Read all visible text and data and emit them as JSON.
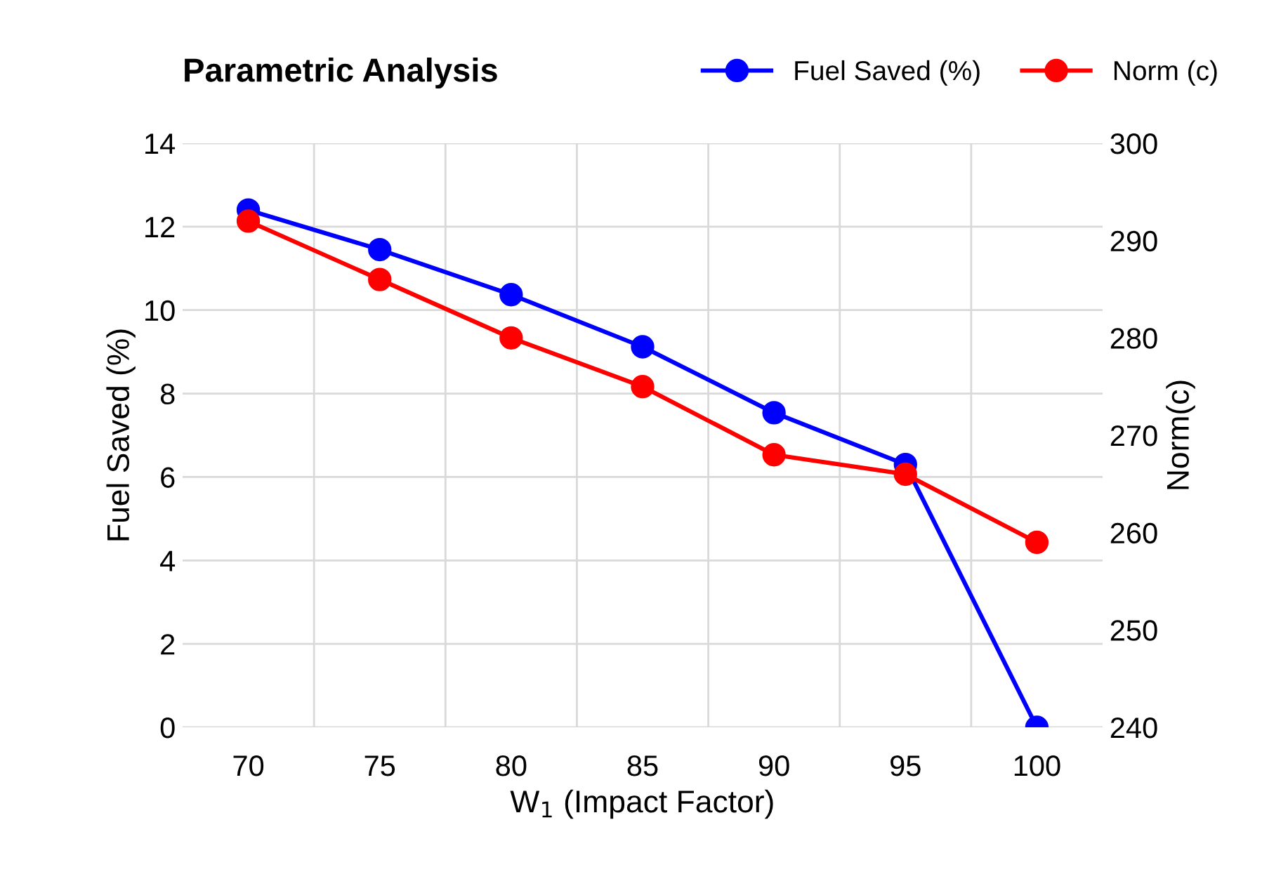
{
  "chart_data": {
    "type": "line",
    "title": "Parametric Analysis",
    "xlabel": "W$_{1}$ (Impact Factor)",
    "ylabel": "Fuel Saved (%)",
    "y2label": "Norm(c)",
    "categories": [
      "70",
      "75",
      "80",
      "85",
      "90",
      "95",
      "100"
    ],
    "series": [
      {
        "name": "Fuel Saved (%)",
        "color": "#0000ff",
        "values": [
          12.4,
          11.45,
          10.37,
          9.12,
          7.54,
          6.3,
          0
        ]
      },
      {
        "name": "Norm (c)",
        "color": "#ff0000",
        "axis": "y2",
        "values": [
          292,
          286,
          280,
          275,
          268,
          266,
          259
        ]
      }
    ],
    "ylim": [
      0,
      14
    ],
    "yticks": [
      0,
      2,
      4,
      6,
      8,
      10,
      12,
      14
    ],
    "y2lim": [
      240,
      300
    ],
    "y2ticks": [
      240,
      250,
      260,
      270,
      280,
      290,
      300
    ],
    "grid": true,
    "legend": "top right",
    "marker": "circle",
    "line_style": "solid"
  }
}
